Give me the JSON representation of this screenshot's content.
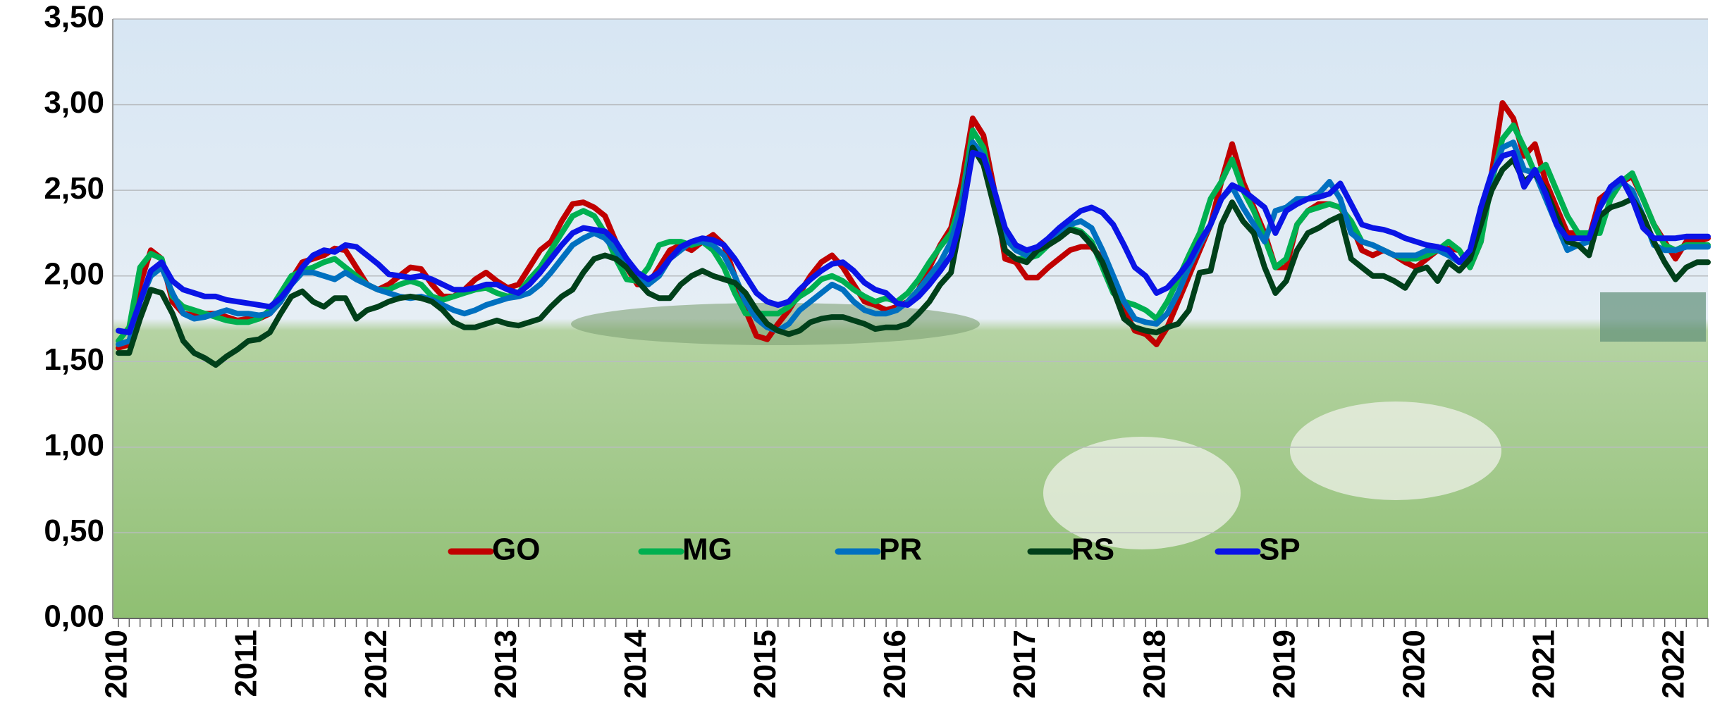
{
  "chart_data": {
    "type": "line",
    "categories": [
      "2010",
      null,
      null,
      null,
      null,
      null,
      null,
      null,
      null,
      null,
      null,
      null,
      "2011",
      null,
      null,
      null,
      null,
      null,
      null,
      null,
      null,
      null,
      null,
      null,
      "2012",
      null,
      null,
      null,
      null,
      null,
      null,
      null,
      null,
      null,
      null,
      null,
      "2013",
      null,
      null,
      null,
      null,
      null,
      null,
      null,
      null,
      null,
      null,
      null,
      "2014",
      null,
      null,
      null,
      null,
      null,
      null,
      null,
      null,
      null,
      null,
      null,
      "2015",
      null,
      null,
      null,
      null,
      null,
      null,
      null,
      null,
      null,
      null,
      null,
      "2016",
      null,
      null,
      null,
      null,
      null,
      null,
      null,
      null,
      null,
      null,
      null,
      "2017",
      null,
      null,
      null,
      null,
      null,
      null,
      null,
      null,
      null,
      null,
      null,
      "2018",
      null,
      null,
      null,
      null,
      null,
      null,
      null,
      null,
      null,
      null,
      null,
      "2019",
      null,
      null,
      null,
      null,
      null,
      null,
      null,
      null,
      null,
      null,
      null,
      "2020",
      null,
      null,
      null,
      null,
      null,
      null,
      null,
      null,
      null,
      null,
      null,
      "2021",
      null,
      null,
      null,
      null,
      null,
      null,
      null,
      null,
      null,
      null,
      null,
      "2022",
      null,
      null,
      null
    ],
    "series": [
      {
        "name": "GO",
        "color": "#c00000",
        "values": [
          1.58,
          1.6,
          1.95,
          2.15,
          2.1,
          1.85,
          1.78,
          1.77,
          1.78,
          1.78,
          1.76,
          1.74,
          1.75,
          1.75,
          1.78,
          1.85,
          1.98,
          2.08,
          2.1,
          2.12,
          2.16,
          2.15,
          2.05,
          1.95,
          1.92,
          1.95,
          2.0,
          2.05,
          2.04,
          1.95,
          1.88,
          1.88,
          1.92,
          1.98,
          2.02,
          1.97,
          1.93,
          1.95,
          2.05,
          2.15,
          2.2,
          2.32,
          2.42,
          2.43,
          2.4,
          2.35,
          2.2,
          2.05,
          1.95,
          1.95,
          2.05,
          2.15,
          2.18,
          2.15,
          2.2,
          2.24,
          2.18,
          2.0,
          1.8,
          1.65,
          1.63,
          1.72,
          1.8,
          1.9,
          2.0,
          2.08,
          2.12,
          2.05,
          1.95,
          1.85,
          1.83,
          1.8,
          1.82,
          1.85,
          1.92,
          2.05,
          2.18,
          2.28,
          2.55,
          2.92,
          2.82,
          2.5,
          2.1,
          2.08,
          1.99,
          1.99,
          2.05,
          2.1,
          2.15,
          2.17,
          2.17,
          2.1,
          1.95,
          1.8,
          1.68,
          1.66,
          1.6,
          1.7,
          1.85,
          2.0,
          2.15,
          2.3,
          2.55,
          2.77,
          2.55,
          2.4,
          2.25,
          2.05,
          2.05,
          2.3,
          2.38,
          2.42,
          2.42,
          2.4,
          2.3,
          2.15,
          2.12,
          2.15,
          2.12,
          2.08,
          2.05,
          2.1,
          2.15,
          2.16,
          2.15,
          2.05,
          2.2,
          2.6,
          3.01,
          2.92,
          2.7,
          2.77,
          2.55,
          2.4,
          2.25,
          2.25,
          2.22,
          2.45,
          2.5,
          2.55,
          2.58,
          2.45,
          2.3,
          2.2,
          2.1,
          2.2,
          2.2,
          2.22
        ]
      },
      {
        "name": "MG",
        "color": "#00b050",
        "values": [
          1.62,
          1.7,
          2.05,
          2.13,
          2.1,
          1.88,
          1.82,
          1.8,
          1.78,
          1.76,
          1.74,
          1.73,
          1.73,
          1.75,
          1.8,
          1.9,
          2.0,
          2.03,
          2.05,
          2.08,
          2.1,
          2.05,
          2.0,
          1.95,
          1.92,
          1.92,
          1.95,
          1.97,
          1.95,
          1.88,
          1.86,
          1.88,
          1.9,
          1.92,
          1.93,
          1.9,
          1.88,
          1.9,
          1.98,
          2.05,
          2.15,
          2.25,
          2.35,
          2.38,
          2.35,
          2.25,
          2.1,
          1.98,
          1.97,
          2.05,
          2.18,
          2.2,
          2.2,
          2.18,
          2.2,
          2.15,
          2.05,
          1.9,
          1.78,
          1.78,
          1.78,
          1.78,
          1.82,
          1.88,
          1.92,
          1.98,
          2.0,
          1.97,
          1.92,
          1.88,
          1.85,
          1.87,
          1.85,
          1.9,
          1.98,
          2.08,
          2.17,
          2.25,
          2.45,
          2.85,
          2.75,
          2.45,
          2.15,
          2.1,
          2.1,
          2.12,
          2.18,
          2.25,
          2.28,
          2.26,
          2.2,
          2.05,
          1.9,
          1.85,
          1.83,
          1.8,
          1.75,
          1.85,
          1.98,
          2.12,
          2.25,
          2.45,
          2.55,
          2.68,
          2.5,
          2.38,
          2.22,
          2.05,
          2.1,
          2.3,
          2.38,
          2.4,
          2.42,
          2.4,
          2.32,
          2.2,
          2.18,
          2.15,
          2.12,
          2.1,
          2.1,
          2.12,
          2.15,
          2.2,
          2.15,
          2.05,
          2.2,
          2.55,
          2.8,
          2.88,
          2.75,
          2.6,
          2.65,
          2.5,
          2.35,
          2.25,
          2.25,
          2.25,
          2.45,
          2.55,
          2.6,
          2.45,
          2.3,
          2.18,
          2.15,
          2.18,
          2.18,
          2.18
        ]
      },
      {
        "name": "PR",
        "color": "#0070c0",
        "values": [
          1.6,
          1.62,
          1.85,
          2.0,
          2.05,
          1.9,
          1.78,
          1.75,
          1.76,
          1.78,
          1.8,
          1.78,
          1.78,
          1.77,
          1.78,
          1.85,
          1.95,
          2.02,
          2.02,
          2.0,
          1.98,
          2.02,
          1.98,
          1.95,
          1.92,
          1.9,
          1.88,
          1.87,
          1.88,
          1.86,
          1.83,
          1.8,
          1.78,
          1.8,
          1.83,
          1.85,
          1.87,
          1.88,
          1.9,
          1.95,
          2.02,
          2.1,
          2.18,
          2.22,
          2.25,
          2.22,
          2.15,
          2.05,
          1.98,
          1.95,
          2.0,
          2.1,
          2.15,
          2.2,
          2.2,
          2.18,
          2.12,
          2.0,
          1.85,
          1.75,
          1.7,
          1.68,
          1.72,
          1.8,
          1.85,
          1.9,
          1.95,
          1.92,
          1.85,
          1.8,
          1.78,
          1.78,
          1.8,
          1.85,
          1.92,
          2.0,
          2.08,
          2.2,
          2.42,
          2.78,
          2.7,
          2.45,
          2.22,
          2.15,
          2.12,
          2.15,
          2.2,
          2.25,
          2.3,
          2.32,
          2.28,
          2.15,
          2.0,
          1.85,
          1.75,
          1.73,
          1.72,
          1.78,
          1.9,
          2.05,
          2.18,
          2.3,
          2.45,
          2.52,
          2.4,
          2.3,
          2.2,
          2.38,
          2.4,
          2.45,
          2.45,
          2.48,
          2.55,
          2.45,
          2.25,
          2.2,
          2.18,
          2.15,
          2.12,
          2.12,
          2.12,
          2.15,
          2.15,
          2.12,
          2.08,
          2.1,
          2.4,
          2.58,
          2.75,
          2.78,
          2.62,
          2.6,
          2.45,
          2.3,
          2.15,
          2.18,
          2.2,
          2.4,
          2.5,
          2.55,
          2.5,
          2.35,
          2.18,
          2.15,
          2.15,
          2.17,
          2.17,
          2.17
        ]
      },
      {
        "name": "RS",
        "color": "#00401a",
        "values": [
          1.55,
          1.55,
          1.75,
          1.92,
          1.9,
          1.78,
          1.62,
          1.55,
          1.52,
          1.48,
          1.53,
          1.57,
          1.62,
          1.63,
          1.67,
          1.78,
          1.88,
          1.91,
          1.85,
          1.82,
          1.87,
          1.87,
          1.75,
          1.8,
          1.82,
          1.85,
          1.87,
          1.88,
          1.87,
          1.85,
          1.8,
          1.73,
          1.7,
          1.7,
          1.72,
          1.74,
          1.72,
          1.71,
          1.73,
          1.75,
          1.82,
          1.88,
          1.92,
          2.02,
          2.1,
          2.12,
          2.1,
          2.05,
          1.97,
          1.9,
          1.87,
          1.87,
          1.95,
          2.0,
          2.03,
          2.0,
          1.98,
          1.96,
          1.9,
          1.8,
          1.72,
          1.68,
          1.66,
          1.68,
          1.73,
          1.75,
          1.76,
          1.76,
          1.74,
          1.72,
          1.69,
          1.7,
          1.7,
          1.72,
          1.78,
          1.85,
          1.95,
          2.02,
          2.35,
          2.75,
          2.65,
          2.4,
          2.15,
          2.1,
          2.08,
          2.15,
          2.18,
          2.22,
          2.27,
          2.25,
          2.18,
          2.08,
          1.92,
          1.75,
          1.7,
          1.68,
          1.67,
          1.7,
          1.72,
          1.8,
          2.02,
          2.03,
          2.3,
          2.43,
          2.32,
          2.25,
          2.05,
          1.9,
          1.97,
          2.15,
          2.25,
          2.28,
          2.32,
          2.35,
          2.1,
          2.05,
          2.0,
          2.0,
          1.97,
          1.93,
          2.03,
          2.05,
          1.97,
          2.08,
          2.03,
          2.1,
          2.3,
          2.5,
          2.62,
          2.68,
          2.55,
          2.6,
          2.5,
          2.35,
          2.2,
          2.18,
          2.12,
          2.35,
          2.4,
          2.42,
          2.45,
          2.35,
          2.2,
          2.08,
          1.98,
          2.05,
          2.08,
          2.08
        ]
      },
      {
        "name": "SP",
        "color": "#0a14e6",
        "values": [
          1.68,
          1.67,
          1.85,
          2.03,
          2.08,
          1.97,
          1.92,
          1.9,
          1.88,
          1.88,
          1.86,
          1.85,
          1.84,
          1.83,
          1.82,
          1.87,
          1.95,
          2.05,
          2.12,
          2.15,
          2.14,
          2.18,
          2.17,
          2.12,
          2.07,
          2.01,
          2.0,
          1.99,
          2.0,
          1.98,
          1.95,
          1.92,
          1.92,
          1.93,
          1.95,
          1.95,
          1.92,
          1.9,
          1.95,
          2.02,
          2.1,
          2.18,
          2.25,
          2.28,
          2.27,
          2.26,
          2.2,
          2.1,
          2.02,
          1.98,
          2.02,
          2.1,
          2.17,
          2.2,
          2.22,
          2.21,
          2.18,
          2.1,
          2.0,
          1.9,
          1.85,
          1.83,
          1.85,
          1.92,
          1.98,
          2.03,
          2.07,
          2.08,
          2.03,
          1.96,
          1.92,
          1.9,
          1.84,
          1.83,
          1.88,
          1.95,
          2.03,
          2.12,
          2.35,
          2.72,
          2.7,
          2.5,
          2.28,
          2.18,
          2.15,
          2.17,
          2.22,
          2.28,
          2.33,
          2.38,
          2.4,
          2.37,
          2.3,
          2.18,
          2.05,
          2.0,
          1.9,
          1.93,
          2.0,
          2.08,
          2.2,
          2.3,
          2.45,
          2.53,
          2.5,
          2.45,
          2.4,
          2.25,
          2.38,
          2.42,
          2.45,
          2.46,
          2.48,
          2.54,
          2.42,
          2.3,
          2.28,
          2.27,
          2.25,
          2.22,
          2.2,
          2.18,
          2.17,
          2.15,
          2.08,
          2.15,
          2.4,
          2.6,
          2.7,
          2.72,
          2.52,
          2.62,
          2.48,
          2.3,
          2.22,
          2.22,
          2.22,
          2.4,
          2.52,
          2.57,
          2.45,
          2.28,
          2.22,
          2.22,
          2.22,
          2.23,
          2.23,
          2.23
        ]
      }
    ],
    "ylim": [
      0,
      3.5
    ],
    "yticks": [
      {
        "value": 0,
        "label": "0,00"
      },
      {
        "value": 0.5,
        "label": "0,50"
      },
      {
        "value": 1,
        "label": "1,00"
      },
      {
        "value": 1.5,
        "label": "1,50"
      },
      {
        "value": 2,
        "label": "2,00"
      },
      {
        "value": 2.5,
        "label": "2,50"
      },
      {
        "value": 3,
        "label": "3,00"
      },
      {
        "value": 3.5,
        "label": "3,50"
      }
    ],
    "grid": true
  }
}
